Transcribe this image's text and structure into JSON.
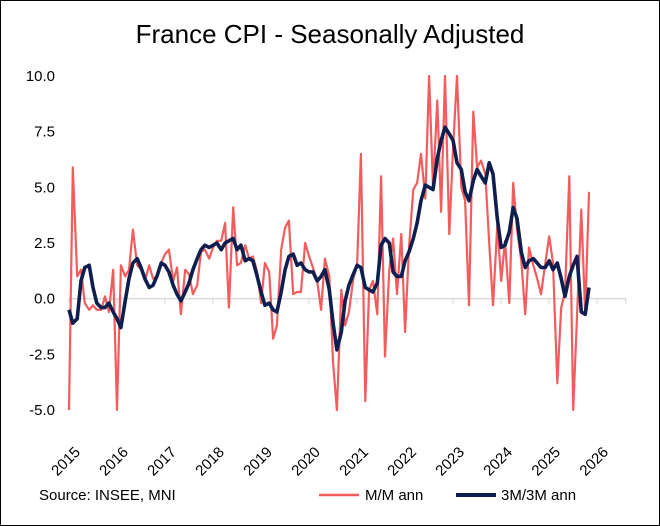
{
  "chart_data": {
    "type": "line",
    "title": "France CPI - Seasonally Adjusted",
    "source": "Source: INSEE, MNI",
    "xlabel": "",
    "ylabel": "",
    "ylim": [
      -5.0,
      10.0
    ],
    "xlim": [
      2015.0,
      2026.6
    ],
    "yticks": [
      "10.0",
      "7.5",
      "5.0",
      "2.5",
      "0.0",
      "-2.5",
      "-5.0"
    ],
    "xticks": [
      "2015",
      "2016",
      "2017",
      "2018",
      "2019",
      "2020",
      "2021",
      "2022",
      "2023",
      "2024",
      "2025",
      "2026"
    ],
    "colors": {
      "mm": "#F25C5C",
      "three": "#0E1F4F",
      "axis": "#D9D9D9"
    },
    "series": [
      {
        "name": "M/M ann",
        "x": [
          2015.0,
          2015.08,
          2015.17,
          2015.25,
          2015.33,
          2015.42,
          2015.5,
          2015.58,
          2015.67,
          2015.75,
          2015.83,
          2015.92,
          2016.0,
          2016.08,
          2016.17,
          2016.25,
          2016.33,
          2016.42,
          2016.5,
          2016.58,
          2016.67,
          2016.75,
          2016.83,
          2016.92,
          2017.0,
          2017.08,
          2017.17,
          2017.25,
          2017.33,
          2017.42,
          2017.5,
          2017.58,
          2017.67,
          2017.75,
          2017.83,
          2017.92,
          2018.0,
          2018.08,
          2018.17,
          2018.25,
          2018.33,
          2018.42,
          2018.5,
          2018.58,
          2018.67,
          2018.75,
          2018.83,
          2018.92,
          2019.0,
          2019.08,
          2019.17,
          2019.25,
          2019.33,
          2019.42,
          2019.5,
          2019.58,
          2019.67,
          2019.75,
          2019.83,
          2019.92,
          2020.0,
          2020.08,
          2020.17,
          2020.25,
          2020.33,
          2020.42,
          2020.5,
          2020.58,
          2020.67,
          2020.75,
          2020.83,
          2020.92,
          2021.0,
          2021.08,
          2021.17,
          2021.25,
          2021.33,
          2021.42,
          2021.5,
          2021.58,
          2021.67,
          2021.75,
          2021.83,
          2021.92,
          2022.0,
          2022.08,
          2022.17,
          2022.25,
          2022.33,
          2022.42,
          2022.5,
          2022.58,
          2022.67,
          2022.75,
          2022.83,
          2022.92,
          2023.0,
          2023.08,
          2023.17,
          2023.25,
          2023.33,
          2023.42,
          2023.5,
          2023.58,
          2023.67,
          2023.75,
          2023.83,
          2023.92,
          2024.0,
          2024.08,
          2024.17,
          2024.25,
          2024.33,
          2024.42,
          2024.5,
          2024.58,
          2024.67,
          2024.75,
          2024.83,
          2024.92,
          2025.0,
          2025.08,
          2025.17,
          2025.25,
          2025.33,
          2025.42
        ],
        "values": [
          -5.0,
          5.9,
          1.0,
          1.3,
          -0.2,
          -0.5,
          -0.3,
          -0.5,
          -0.5,
          0.1,
          -0.6,
          1.3,
          -5.0,
          1.5,
          1.0,
          1.3,
          3.1,
          1.5,
          1.3,
          0.8,
          1.5,
          0.9,
          1.0,
          1.6,
          2.0,
          2.2,
          0.8,
          1.4,
          -0.7,
          1.3,
          1.1,
          0.2,
          0.6,
          2.1,
          2.2,
          1.8,
          2.3,
          2.6,
          2.6,
          3.4,
          -0.4,
          4.1,
          1.5,
          1.6,
          2.4,
          1.8,
          1.9,
          1.2,
          -0.2,
          1.6,
          1.2,
          -1.8,
          -1.2,
          2.2,
          3.2,
          3.5,
          0.2,
          0.3,
          0.3,
          2.5,
          1.9,
          1.4,
          0.8,
          -0.5,
          1.8,
          1.0,
          -2.9,
          -5.0,
          0.4,
          -1.2,
          -0.6,
          0.9,
          1.5,
          6.5,
          -4.6,
          0.4,
          0.8,
          -0.7,
          5.5,
          -2.6,
          1.3,
          2.7,
          0.2,
          2.9,
          -1.5,
          2.3,
          4.9,
          5.2,
          6.5,
          4.5,
          10.0,
          5.0,
          8.9,
          3.9,
          10.0,
          2.9,
          6.8,
          10.0,
          5.0,
          4.4,
          -0.3,
          8.4,
          5.9,
          6.2,
          5.6,
          2.5,
          -0.3,
          3.3,
          0.8,
          2.6,
          -0.2,
          5.2,
          3.1,
          1.7,
          -0.7,
          2.3,
          1.5,
          0.9,
          0.2,
          1.6,
          2.8,
          1.6,
          -3.8,
          -0.4,
          0.3,
          5.5
        ],
        "tail_x": [
          2025.5,
          2025.58,
          2025.67,
          2025.75,
          2025.83
        ],
        "tail_values": [
          -5.0,
          -0.8,
          4.0,
          -0.7,
          4.8
        ]
      },
      {
        "name": "3M/3M ann",
        "x": [
          2015.0,
          2015.08,
          2015.17,
          2015.25,
          2015.33,
          2015.42,
          2015.5,
          2015.58,
          2015.67,
          2015.75,
          2015.83,
          2015.92,
          2016.0,
          2016.08,
          2016.17,
          2016.25,
          2016.33,
          2016.42,
          2016.5,
          2016.58,
          2016.67,
          2016.75,
          2016.83,
          2016.92,
          2017.0,
          2017.08,
          2017.17,
          2017.25,
          2017.33,
          2017.42,
          2017.5,
          2017.58,
          2017.67,
          2017.75,
          2017.83,
          2017.92,
          2018.0,
          2018.08,
          2018.17,
          2018.25,
          2018.33,
          2018.42,
          2018.5,
          2018.58,
          2018.67,
          2018.75,
          2018.83,
          2018.92,
          2019.0,
          2019.08,
          2019.17,
          2019.25,
          2019.33,
          2019.42,
          2019.5,
          2019.58,
          2019.67,
          2019.75,
          2019.83,
          2019.92,
          2020.0,
          2020.08,
          2020.17,
          2020.25,
          2020.33,
          2020.42,
          2020.5,
          2020.58,
          2020.67,
          2020.75,
          2020.83,
          2020.92,
          2021.0,
          2021.08,
          2021.17,
          2021.25,
          2021.33,
          2021.42,
          2021.5,
          2021.58,
          2021.67,
          2021.75,
          2021.83,
          2021.92,
          2022.0,
          2022.08,
          2022.17,
          2022.25,
          2022.33,
          2022.42,
          2022.5,
          2022.58,
          2022.67,
          2022.75,
          2022.83,
          2022.92,
          2023.0,
          2023.08,
          2023.17,
          2023.25,
          2023.33,
          2023.42,
          2023.5,
          2023.58,
          2023.67,
          2023.75,
          2023.83,
          2023.92,
          2024.0,
          2024.08,
          2024.17,
          2024.25,
          2024.33,
          2024.42,
          2024.5,
          2024.58,
          2024.67,
          2024.75,
          2024.83,
          2024.92,
          2025.0,
          2025.08,
          2025.17,
          2025.25,
          2025.33,
          2025.42,
          2025.5,
          2025.58,
          2025.67,
          2025.75,
          2025.83
        ],
        "values": [
          -0.5,
          -1.1,
          -0.9,
          0.8,
          1.4,
          1.5,
          0.5,
          -0.2,
          -0.4,
          -0.4,
          -0.2,
          -0.6,
          -0.9,
          -1.3,
          -0.1,
          0.9,
          1.6,
          1.8,
          1.4,
          0.9,
          0.5,
          0.6,
          1.0,
          1.6,
          1.5,
          1.2,
          0.6,
          0.2,
          -0.1,
          0.3,
          0.7,
          1.3,
          1.8,
          2.2,
          2.4,
          2.3,
          2.4,
          2.5,
          2.2,
          2.5,
          2.6,
          2.7,
          2.2,
          2.4,
          1.7,
          1.8,
          1.7,
          1.0,
          0.3,
          -0.3,
          -0.2,
          -0.5,
          -0.6,
          0.3,
          1.3,
          1.9,
          2.0,
          1.5,
          1.6,
          1.3,
          1.2,
          1.2,
          0.8,
          1.0,
          1.3,
          0.4,
          -1.1,
          -2.3,
          -1.5,
          -0.1,
          0.6,
          1.1,
          1.5,
          1.4,
          0.5,
          0.4,
          0.3,
          0.7,
          2.4,
          2.7,
          2.5,
          1.2,
          1.0,
          1.0,
          1.7,
          2.1,
          2.7,
          3.4,
          4.4,
          5.1,
          5.0,
          4.9,
          6.3,
          7.1,
          7.7,
          7.4,
          7.1,
          6.1,
          5.8,
          4.8,
          4.4,
          5.3,
          5.8,
          5.5,
          5.2,
          6.1,
          5.6,
          3.6,
          2.3,
          2.4,
          3.0,
          4.1,
          3.6,
          2.1,
          1.4,
          1.7,
          1.8,
          1.6,
          1.4,
          1.4,
          1.7,
          1.3,
          1.6,
          0.9,
          0.1,
          1.0,
          1.5,
          1.9,
          -0.6,
          -0.7,
          0.5
        ]
      }
    ],
    "legend": {
      "placement": "bottom-right",
      "items": [
        "M/M ann",
        "3M/3M ann"
      ]
    }
  }
}
